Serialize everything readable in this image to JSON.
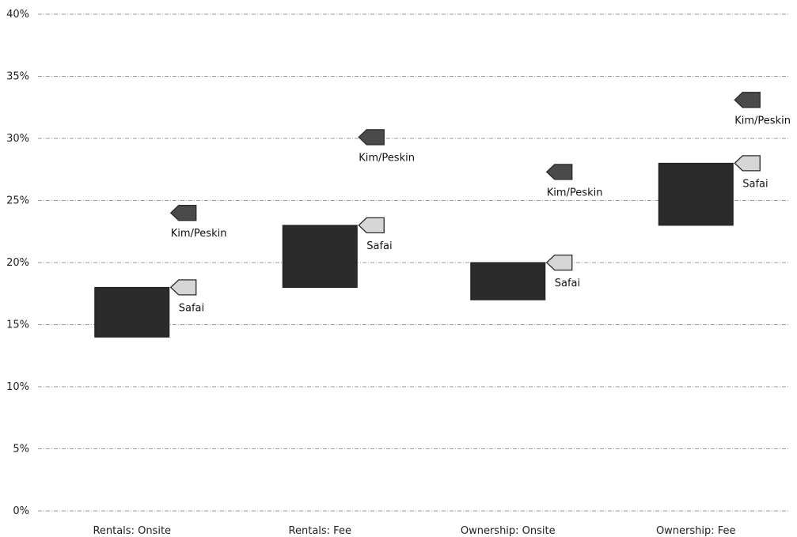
{
  "chart_data": {
    "type": "range-bar",
    "title": "",
    "xlabel": "",
    "ylabel": "",
    "ylim": [
      0,
      40
    ],
    "y_ticks": [
      {
        "value": 0,
        "label": "0%"
      },
      {
        "value": 5,
        "label": "5%"
      },
      {
        "value": 10,
        "label": "10%"
      },
      {
        "value": 15,
        "label": "15%"
      },
      {
        "value": 20,
        "label": "20%"
      },
      {
        "value": 25,
        "label": "25%"
      },
      {
        "value": 30,
        "label": "30%"
      },
      {
        "value": 35,
        "label": "35%"
      },
      {
        "value": 40,
        "label": "40%"
      }
    ],
    "grid": true,
    "categories": [
      "Rentals: Onsite",
      "Rentals: Fee",
      "Ownership: Onsite",
      "Ownership: Fee"
    ],
    "ranges": [
      {
        "low": 14,
        "high": 18
      },
      {
        "low": 18,
        "high": 23
      },
      {
        "low": 17,
        "high": 20
      },
      {
        "low": 23,
        "high": 28
      }
    ],
    "series": [
      {
        "name": "Kim/Peskin",
        "values": [
          24,
          30.1,
          27.3,
          33.1
        ]
      },
      {
        "name": "Safai",
        "values": [
          18,
          23,
          20,
          28
        ]
      }
    ],
    "colors": {
      "range_box": "#2b2b2b",
      "kim_peskin_marker": "#4a4a4a",
      "safai_marker": "#d6d6d6",
      "marker_outline": "#2a2a2a",
      "grid": "#9a9a9a"
    }
  }
}
